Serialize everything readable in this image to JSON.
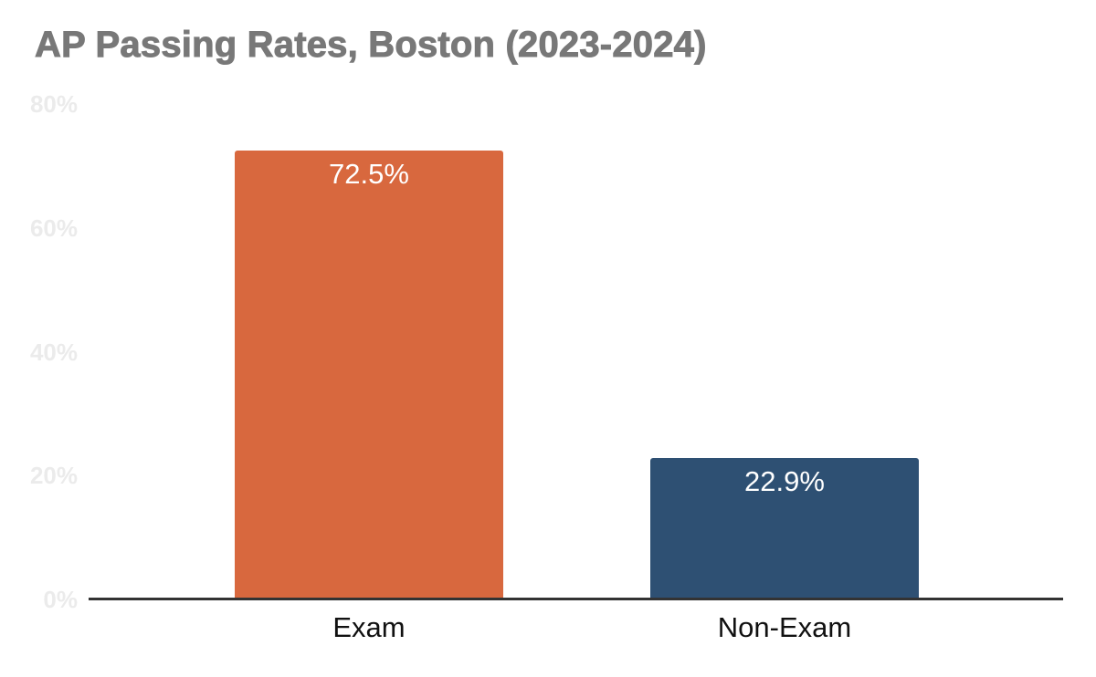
{
  "title": "AP Passing Rates, Boston (2023-2024)",
  "colors": {
    "background": "#FFFFFF",
    "title_text": "#787878",
    "ytick_text": "#EBEBEB",
    "axis_line": "#333333",
    "bar_value_text": "#FFFFFF",
    "category_text": "#111111",
    "exam_bar": "#D8683E",
    "non_exam_bar": "#2E5073"
  },
  "chart_data": {
    "type": "bar",
    "title": "AP Passing Rates, Boston (2023-2024)",
    "categories": [
      "Exam",
      "Non-Exam"
    ],
    "values": [
      72.5,
      22.9
    ],
    "value_labels": [
      "72.5%",
      "22.9%"
    ],
    "bar_colors": [
      "#D8683E",
      "#2E5073"
    ],
    "xlabel": "",
    "ylabel": "",
    "ylim": [
      0,
      80
    ],
    "yticks": [
      {
        "value": 0,
        "label": "0%"
      },
      {
        "value": 20,
        "label": "20%"
      },
      {
        "value": 40,
        "label": "40%"
      },
      {
        "value": 60,
        "label": "60%"
      },
      {
        "value": 80,
        "label": "80%"
      }
    ],
    "grid": false,
    "legend": "none"
  }
}
